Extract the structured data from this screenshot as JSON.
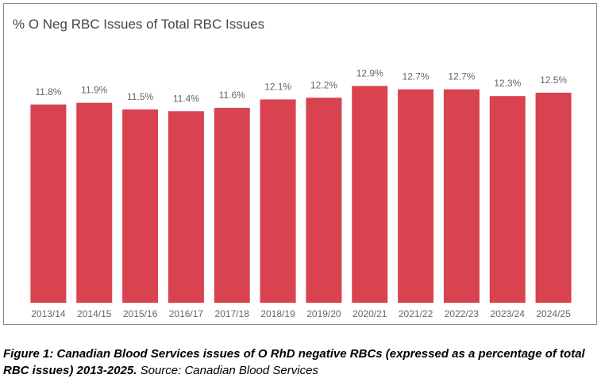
{
  "chart_data": {
    "type": "bar",
    "title": "% O Neg RBC Issues of Total RBC Issues",
    "categories": [
      "2013/14",
      "2014/15",
      "2015/16",
      "2016/17",
      "2017/18",
      "2018/19",
      "2019/20",
      "2020/21",
      "2021/22",
      "2022/23",
      "2023/24",
      "2024/25"
    ],
    "values": [
      11.8,
      11.9,
      11.5,
      11.4,
      11.6,
      12.1,
      12.2,
      12.9,
      12.7,
      12.7,
      12.3,
      12.5
    ],
    "value_labels": [
      "11.8%",
      "11.9%",
      "11.5%",
      "11.4%",
      "11.6%",
      "12.1%",
      "12.2%",
      "12.9%",
      "12.7%",
      "12.7%",
      "12.3%",
      "12.5%"
    ],
    "color": "#d8434f",
    "ylim": [
      0,
      13.3
    ]
  },
  "caption": {
    "figure": "Figure 1: Canadian Blood Services issues of O RhD negative RBCs (expressed as a percentage of total RBC issues) 2013-2025.",
    "source": "Source: Canadian Blood Services"
  }
}
